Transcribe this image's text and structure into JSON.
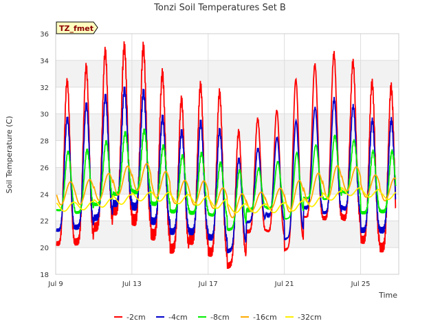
{
  "chart_data": {
    "type": "line",
    "title": "Tonzi Soil Temperatures Set B",
    "xlabel": "Time",
    "ylabel": "Soil Temperature (C)",
    "badge": "TZ_fmet",
    "xlim": [
      9,
      27
    ],
    "ylim": [
      18,
      36
    ],
    "yticks": [
      18,
      20,
      22,
      24,
      26,
      28,
      30,
      32,
      34,
      36
    ],
    "xticks": [
      {
        "value": 9,
        "label": "Jul 9"
      },
      {
        "value": 13,
        "label": "Jul 13"
      },
      {
        "value": 17,
        "label": "Jul 17"
      },
      {
        "value": 21,
        "label": "Jul 21"
      },
      {
        "value": 25,
        "label": "Jul 25"
      }
    ],
    "grid": true,
    "legend_position": "bottom",
    "days": [
      9,
      10,
      11,
      12,
      13,
      14,
      15,
      16,
      17,
      18,
      19,
      20,
      21,
      22,
      23,
      24,
      25,
      26
    ],
    "series": [
      {
        "name": "-2cm",
        "color": "#ff0000",
        "phase": 0.6,
        "smooth": 0,
        "min": [
          20.3,
          20.4,
          21.5,
          22.8,
          22.1,
          21.0,
          19.9,
          20.6,
          19.7,
          18.6,
          21.2,
          21.3,
          19.8,
          22.3,
          22.2,
          22.3,
          20.6,
          20.0
        ],
        "max": [
          32.3,
          33.3,
          34.6,
          35.0,
          35.3,
          33.5,
          30.8,
          32.1,
          32.3,
          28.5,
          29.6,
          29.8,
          32.4,
          33.5,
          34.6,
          34.2,
          32.4,
          32.0
        ]
      },
      {
        "name": "-4cm",
        "color": "#0000cc",
        "phase": 0.61,
        "smooth": 0,
        "min": [
          21.3,
          21.5,
          22.2,
          23.3,
          23.1,
          22.0,
          21.2,
          21.2,
          20.8,
          19.7,
          21.9,
          22.5,
          20.6,
          23.0,
          22.6,
          23.0,
          21.3,
          21.3
        ],
        "max": [
          29.5,
          30.6,
          31.2,
          31.8,
          32.0,
          30.0,
          28.5,
          29.4,
          29.3,
          26.5,
          27.3,
          28.0,
          29.3,
          30.3,
          31.2,
          30.8,
          29.5,
          29.5
        ]
      },
      {
        "name": "-8cm",
        "color": "#00ee00",
        "phase": 0.65,
        "smooth": 0,
        "min": [
          22.8,
          22.6,
          23.2,
          24.0,
          24.2,
          23.3,
          22.7,
          22.6,
          22.5,
          21.3,
          22.8,
          23.0,
          22.1,
          23.7,
          23.6,
          24.2,
          22.6,
          22.7
        ],
        "max": [
          27.2,
          27.2,
          27.8,
          28.5,
          29.0,
          27.8,
          26.8,
          27.2,
          26.5,
          25.8,
          25.8,
          26.3,
          27.0,
          27.5,
          28.4,
          28.2,
          27.2,
          27.2
        ]
      },
      {
        "name": "-16cm",
        "color": "#ffaa00",
        "phase": 0.78,
        "smooth": 1,
        "min": [
          23.2,
          23.2,
          23.5,
          23.9,
          24.3,
          23.8,
          23.3,
          23.2,
          23.0,
          22.2,
          22.7,
          22.9,
          22.6,
          23.3,
          23.6,
          24.3,
          23.8,
          23.5
        ],
        "max": [
          24.9,
          25.0,
          25.4,
          26.0,
          26.4,
          25.9,
          25.0,
          25.1,
          24.6,
          24.0,
          24.1,
          24.3,
          24.9,
          25.4,
          26.1,
          26.2,
          25.5,
          25.2
        ]
      },
      {
        "name": "-32cm",
        "color": "#ffee00",
        "phase": 0.95,
        "smooth": 2,
        "min": [
          22.7,
          22.8,
          23.0,
          23.2,
          23.5,
          23.5,
          23.3,
          23.2,
          23.0,
          22.6,
          22.6,
          22.6,
          22.7,
          23.0,
          23.5,
          23.9,
          23.8,
          23.6
        ],
        "max": [
          23.4,
          23.4,
          23.6,
          23.9,
          24.1,
          24.2,
          24.0,
          23.9,
          23.7,
          23.3,
          23.2,
          23.3,
          23.4,
          23.7,
          24.1,
          24.5,
          24.4,
          24.2
        ]
      }
    ],
    "x_end": 26.85
  }
}
